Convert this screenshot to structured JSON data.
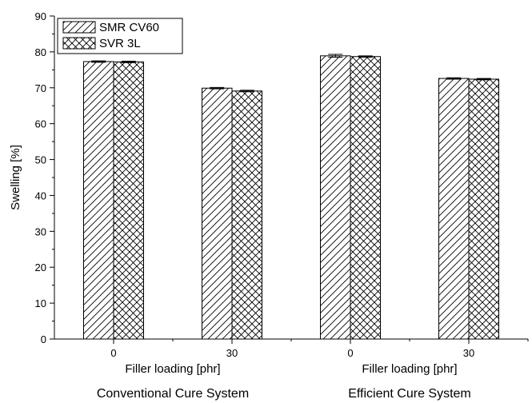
{
  "chart_data": {
    "type": "bar",
    "ylabel": "Swelling [%]",
    "ylim": [
      0,
      90
    ],
    "yticks": [
      0,
      10,
      20,
      30,
      40,
      50,
      60,
      70,
      80,
      90
    ],
    "groups": [
      {
        "tick": "0",
        "xlabel": "Filler loading [phr]",
        "system": ""
      },
      {
        "tick": "30",
        "xlabel": "",
        "system": ""
      },
      {
        "tick": "0",
        "xlabel": "Filler loading [phr]",
        "system": ""
      },
      {
        "tick": "30",
        "xlabel": "",
        "system": ""
      }
    ],
    "group_titles": [
      {
        "text": "Conventional Cure System",
        "groups": [
          0,
          1
        ]
      },
      {
        "text": "Efficient Cure System",
        "groups": [
          2,
          3
        ]
      }
    ],
    "series": [
      {
        "name": "SMR CV60",
        "pattern": "diagonal",
        "values": [
          77.3,
          69.9,
          78.9,
          72.6
        ],
        "errors": [
          0.2,
          0.2,
          0.4,
          0.2
        ]
      },
      {
        "name": "SVR 3L",
        "pattern": "crosshatch",
        "values": [
          77.2,
          69.1,
          78.7,
          72.4
        ],
        "errors": [
          0.2,
          0.2,
          0.2,
          0.2
        ]
      }
    ],
    "legend": "top-left",
    "grid": false
  }
}
